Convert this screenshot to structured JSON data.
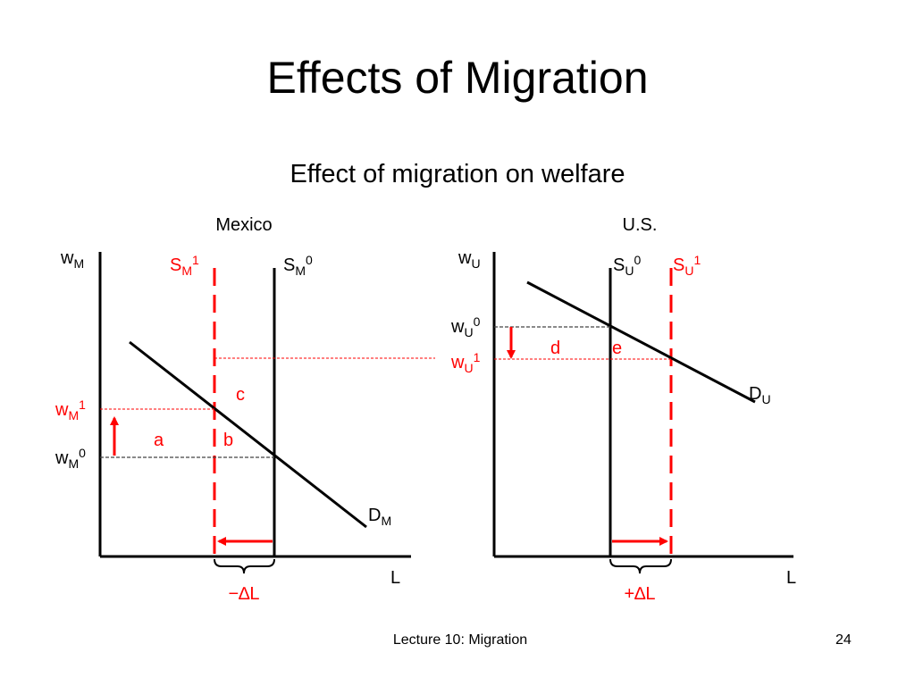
{
  "slide": {
    "title": "Effects of Migration",
    "subtitle": "Effect of migration on welfare",
    "footer": "Lecture 10:  Migration",
    "page_number": "24"
  },
  "colors": {
    "accent": "#ff0000",
    "text": "#000000"
  },
  "mexico": {
    "panel_label": "Mexico",
    "y_axis": {
      "base": "w",
      "sub": "M"
    },
    "x_axis": "L",
    "supply_new": {
      "base": "S",
      "sub": "M",
      "sup": "1"
    },
    "supply_old": {
      "base": "S",
      "sub": "M",
      "sup": "0"
    },
    "demand": {
      "base": "D",
      "sub": "M"
    },
    "wage_new": {
      "base": "w",
      "sub": "M",
      "sup": "1"
    },
    "wage_old": {
      "base": "w",
      "sub": "M",
      "sup": "0"
    },
    "areas": [
      "a",
      "b",
      "c"
    ],
    "delta_label": "−∆L"
  },
  "us": {
    "panel_label": "U.S.",
    "y_axis": {
      "base": "w",
      "sub": "U"
    },
    "x_axis": "L",
    "supply_old": {
      "base": "S",
      "sub": "U",
      "sup": "0"
    },
    "supply_new": {
      "base": "S",
      "sub": "U",
      "sup": "1"
    },
    "demand": {
      "base": "D",
      "sub": "U"
    },
    "wage_old": {
      "base": "w",
      "sub": "U",
      "sup": "0"
    },
    "wage_new": {
      "base": "w",
      "sub": "U",
      "sup": "1"
    },
    "areas": [
      "d",
      "e"
    ],
    "delta_label": "+∆L"
  }
}
